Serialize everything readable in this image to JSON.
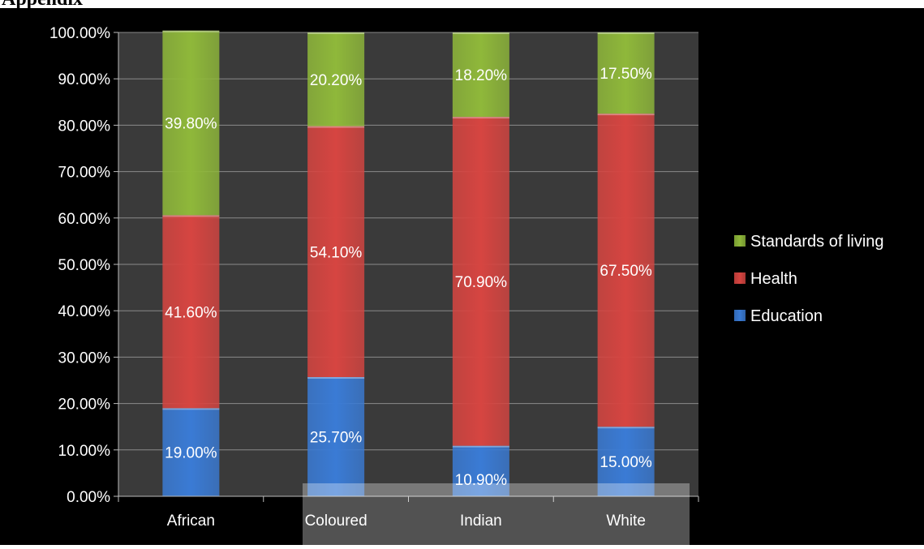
{
  "chart_data": {
    "type": "bar",
    "stacked": true,
    "title": "",
    "xlabel": "",
    "ylabel": "",
    "categories": [
      "African",
      "Coloured",
      "Indian",
      "White"
    ],
    "series": [
      {
        "name": "Education",
        "values": [
          19.0,
          25.7,
          10.9,
          15.0
        ],
        "labels": [
          "19.00%",
          "25.70%",
          "10.90%",
          "15.00%"
        ],
        "color": "#3a7bd5"
      },
      {
        "name": "Health",
        "values": [
          41.6,
          54.1,
          70.9,
          67.5
        ],
        "labels": [
          "41.60%",
          "54.10%",
          "70.90%",
          "67.50%"
        ],
        "color": "#d64541"
      },
      {
        "name": "Standards of living",
        "values": [
          39.8,
          20.2,
          18.2,
          17.5
        ],
        "labels": [
          "39.80%",
          "20.20%",
          "18.20%",
          "17.50%"
        ],
        "color": "#8fb83a"
      }
    ],
    "yticks": [
      "0.00%",
      "10.00%",
      "20.00%",
      "30.00%",
      "40.00%",
      "50.00%",
      "60.00%",
      "70.00%",
      "80.00%",
      "90.00%",
      "100.00%"
    ],
    "ylim": [
      0,
      100
    ],
    "grid": true,
    "legend": [
      "Standards of living",
      "Health",
      "Education"
    ],
    "legend_position": "right",
    "background": "#000000",
    "plot_background": "#3a3a3a"
  }
}
